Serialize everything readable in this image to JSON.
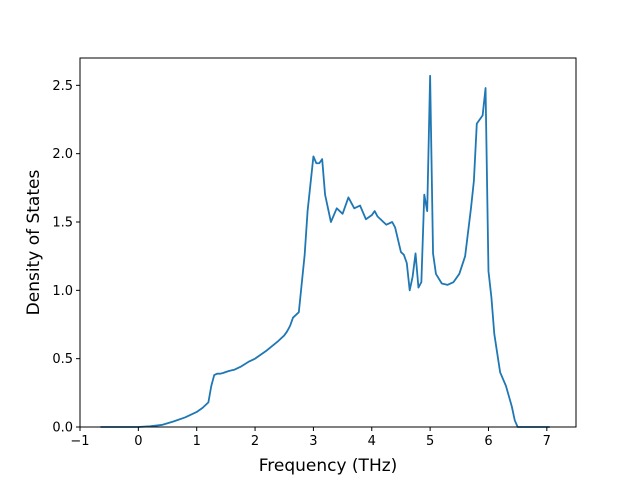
{
  "chart_data": {
    "type": "line",
    "title": "",
    "xlabel": "Frequency (THz)",
    "ylabel": "Density of States",
    "xlim": [
      -1.0,
      7.5
    ],
    "ylim": [
      0.0,
      2.7
    ],
    "xticks": [
      -1,
      0,
      1,
      2,
      3,
      4,
      5,
      6,
      7
    ],
    "xtick_labels": [
      "−1",
      "0",
      "1",
      "2",
      "3",
      "4",
      "5",
      "6",
      "7"
    ],
    "yticks": [
      0.0,
      0.5,
      1.0,
      1.5,
      2.0,
      2.5
    ],
    "ytick_labels": [
      "0.0",
      "0.5",
      "1.0",
      "1.5",
      "2.0",
      "2.5"
    ],
    "grid": false,
    "legend": "none",
    "line_color": "#1f77b4",
    "series": [
      {
        "x": [
          -0.65,
          -0.3,
          0.0,
          0.2,
          0.4,
          0.6,
          0.8,
          1.0,
          1.1,
          1.2,
          1.25,
          1.3,
          1.35,
          1.4,
          1.45,
          1.55,
          1.65,
          1.75,
          1.9,
          2.0,
          2.2,
          2.4,
          2.5,
          2.55,
          2.6,
          2.65,
          2.7,
          2.75,
          2.85,
          2.9,
          2.95,
          3.0,
          3.05,
          3.1,
          3.15,
          3.2,
          3.3,
          3.4,
          3.5,
          3.55,
          3.6,
          3.7,
          3.8,
          3.9,
          4.0,
          4.05,
          4.1,
          4.15,
          4.25,
          4.35,
          4.4,
          4.5,
          4.55,
          4.6,
          4.65,
          4.7,
          4.75,
          4.8,
          4.85,
          4.9,
          4.95,
          5.0,
          5.05,
          5.1,
          5.2,
          5.3,
          5.4,
          5.5,
          5.6,
          5.7,
          5.75,
          5.8,
          5.9,
          5.95,
          6.0,
          6.05,
          6.1,
          6.2,
          6.3,
          6.4,
          6.45,
          6.5,
          7.05
        ],
        "y": [
          0.0,
          0.0,
          0.0,
          0.005,
          0.015,
          0.04,
          0.07,
          0.11,
          0.14,
          0.18,
          0.3,
          0.38,
          0.39,
          0.39,
          0.395,
          0.41,
          0.42,
          0.44,
          0.48,
          0.5,
          0.56,
          0.63,
          0.67,
          0.7,
          0.74,
          0.8,
          0.82,
          0.84,
          1.26,
          1.58,
          1.78,
          1.98,
          1.93,
          1.93,
          1.96,
          1.7,
          1.5,
          1.6,
          1.56,
          1.62,
          1.68,
          1.6,
          1.62,
          1.52,
          1.55,
          1.58,
          1.54,
          1.52,
          1.48,
          1.5,
          1.46,
          1.28,
          1.26,
          1.2,
          1.0,
          1.1,
          1.27,
          1.02,
          1.06,
          1.7,
          1.58,
          2.57,
          1.27,
          1.12,
          1.05,
          1.04,
          1.06,
          1.12,
          1.25,
          1.6,
          1.8,
          2.22,
          2.28,
          2.48,
          1.14,
          0.95,
          0.68,
          0.4,
          0.3,
          0.15,
          0.05,
          0.0,
          0.0
        ]
      }
    ]
  }
}
